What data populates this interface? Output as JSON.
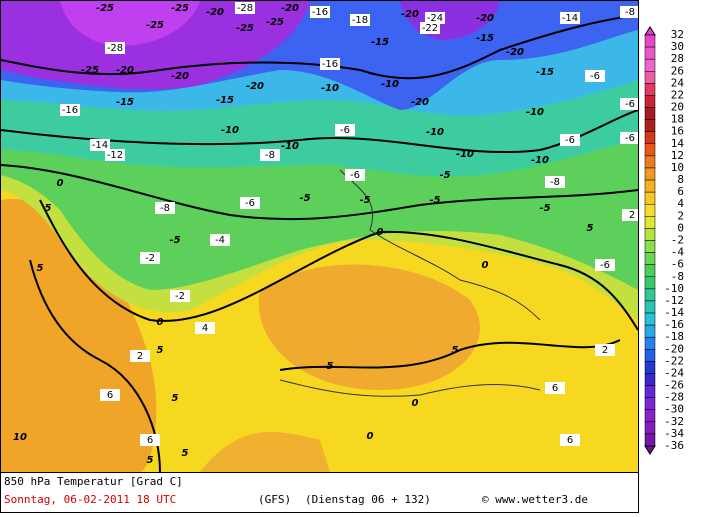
{
  "map": {
    "contour_labels": [
      -25,
      -25,
      -20,
      -28,
      -20,
      -16,
      -18,
      -20,
      -24,
      -20,
      -14,
      -8,
      -28,
      -25,
      -25,
      -25,
      -15,
      -22,
      -15,
      -20,
      -15,
      -6,
      -25,
      -20,
      -20,
      -20,
      -16,
      -10,
      -10,
      -20,
      -10,
      -10,
      -6,
      -16,
      -15,
      -15,
      -10,
      -10,
      -6,
      -10,
      -10,
      -6,
      0,
      -14,
      -12,
      -8,
      -6,
      -5,
      -8,
      -6,
      5,
      -8,
      -6,
      -5,
      -5,
      -5,
      -5,
      5,
      2,
      -5,
      -4,
      0,
      0,
      -2,
      5,
      -6,
      -2,
      0,
      4,
      2,
      5,
      5,
      5,
      2,
      6,
      5,
      0,
      6,
      10,
      6,
      0,
      6,
      5,
      5
    ]
  },
  "colorbar": {
    "labels": [
      32,
      30,
      28,
      26,
      24,
      22,
      20,
      18,
      16,
      14,
      12,
      10,
      8,
      6,
      4,
      2,
      0,
      -2,
      -4,
      -6,
      -8,
      -10,
      -12,
      -14,
      -16,
      -18,
      -20,
      -22,
      -24,
      -26,
      -28,
      -30,
      -32,
      -34,
      -36
    ]
  },
  "footer": {
    "title": "850 hPa Temperatur [Grad C]",
    "date": "Sonntag, 06-02-2011  18 UTC",
    "model": "(GFS)",
    "forecast": "(Dienstag 06 + 132)",
    "credit": "© www.wetter3.de"
  }
}
